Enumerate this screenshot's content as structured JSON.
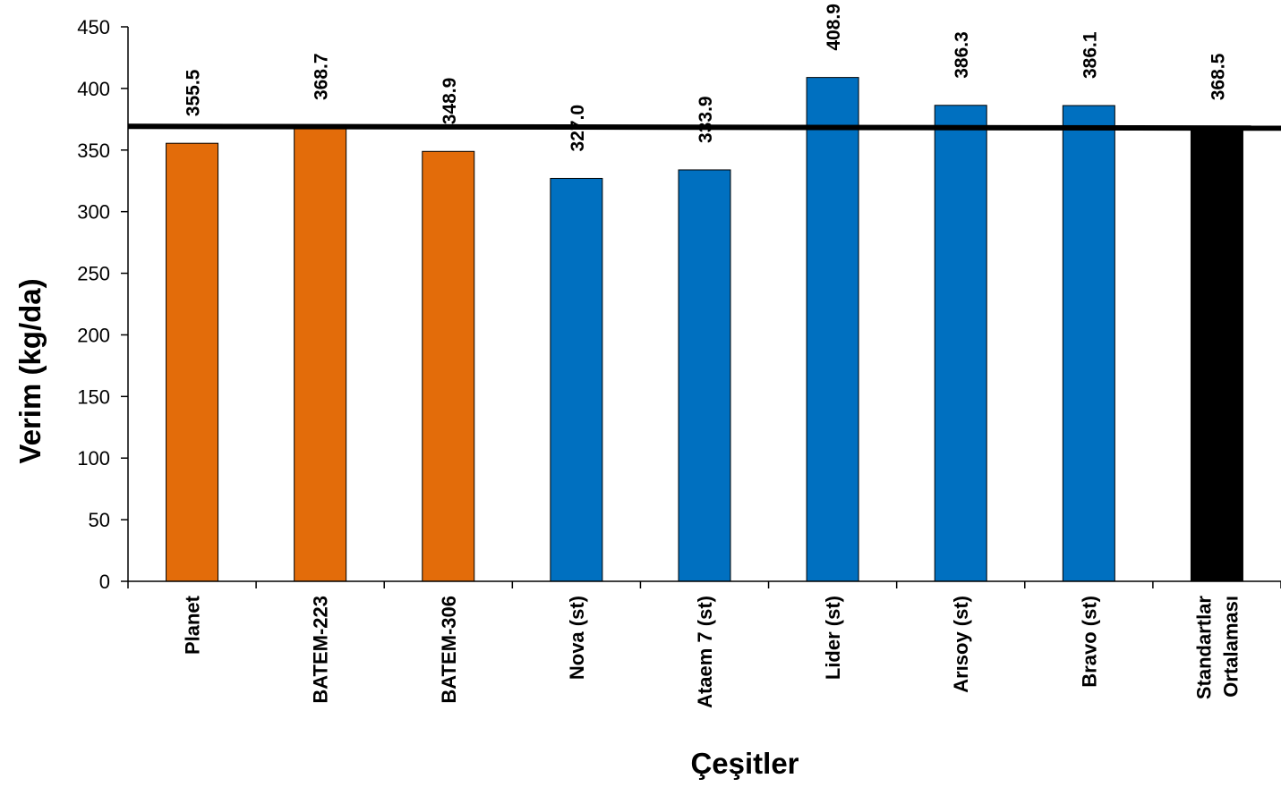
{
  "chart_data": {
    "type": "bar",
    "title": "",
    "xlabel": "Çeşitler",
    "ylabel": "Verim (kg/da)",
    "ylim": [
      0,
      450
    ],
    "yticks": [
      0,
      50,
      100,
      150,
      200,
      250,
      300,
      350,
      400,
      450
    ],
    "grid": false,
    "legend": "none",
    "categories": [
      "Planet",
      "BATEM-223",
      "BATEM-306",
      "Nova (st)",
      "Ataem 7 (st)",
      "Lider (st)",
      "Arısoy (st)",
      "Bravo (st)",
      [
        "Standartlar",
        "Ortalaması"
      ]
    ],
    "values": [
      355.5,
      368.7,
      348.9,
      327.0,
      333.9,
      408.9,
      386.3,
      386.1,
      368.5
    ],
    "value_labels": [
      "355.5",
      "368.7",
      "348.9",
      "327.0",
      "333.9",
      "408.9",
      "386.3",
      "386.1",
      "368.5"
    ],
    "bar_colors": [
      "#E36C0A",
      "#E36C0A",
      "#E36C0A",
      "#0070C0",
      "#0070C0",
      "#0070C0",
      "#0070C0",
      "#0070C0",
      "#000000"
    ],
    "reference_line": {
      "value": 368.5,
      "color": "#000000"
    }
  }
}
